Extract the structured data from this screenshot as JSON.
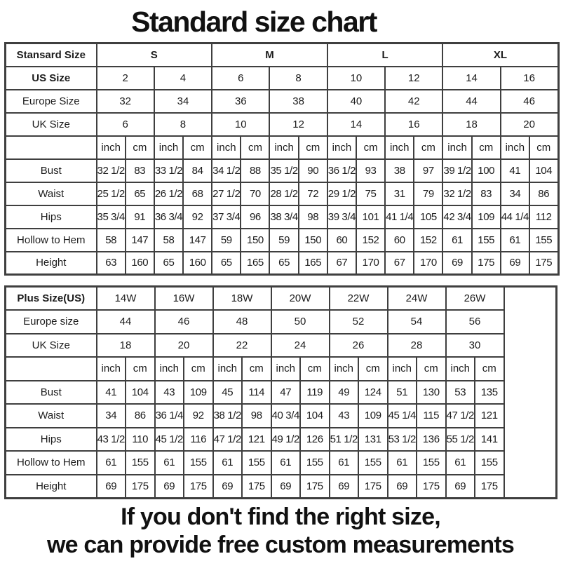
{
  "page_title": "Standard size chart",
  "footer": {
    "line1": "If you don't find the right size,",
    "line2": "we can provide free custom measurements"
  },
  "colors": {
    "background": "#ffffff",
    "border": "#3f3f3f",
    "text": "#1c1c1c"
  },
  "chart_data": [
    {
      "type": "table",
      "name": "standard-size-chart",
      "corner_label": "Stansard Size",
      "groups": [
        "S",
        "M",
        "L",
        "XL"
      ],
      "groups_bold": true,
      "size_rows": [
        {
          "label": "US Size",
          "bold": true,
          "values": [
            "2",
            "4",
            "6",
            "8",
            "10",
            "12",
            "14",
            "16"
          ]
        },
        {
          "label": "Europe Size",
          "bold": false,
          "values": [
            "32",
            "34",
            "36",
            "38",
            "40",
            "42",
            "44",
            "46"
          ]
        },
        {
          "label": "UK Size",
          "bold": false,
          "values": [
            "6",
            "8",
            "10",
            "12",
            "14",
            "16",
            "18",
            "20"
          ]
        }
      ],
      "units": [
        "inch",
        "cm"
      ],
      "measure_rows": [
        {
          "label": "Bust",
          "values": [
            "32 1/2",
            "83",
            "33 1/2",
            "84",
            "34 1/2",
            "88",
            "35 1/2",
            "90",
            "36 1/2",
            "93",
            "38",
            "97",
            "39 1/2",
            "100",
            "41",
            "104"
          ]
        },
        {
          "label": "Waist",
          "values": [
            "25 1/2",
            "65",
            "26 1/2",
            "68",
            "27 1/2",
            "70",
            "28 1/2",
            "72",
            "29 1/2",
            "75",
            "31",
            "79",
            "32 1/2",
            "83",
            "34",
            "86"
          ]
        },
        {
          "label": "Hips",
          "values": [
            "35 3/4",
            "91",
            "36 3/4",
            "92",
            "37 3/4",
            "96",
            "38 3/4",
            "98",
            "39 3/4",
            "101",
            "41 1/4",
            "105",
            "42 3/4",
            "109",
            "44 1/4",
            "112"
          ]
        },
        {
          "label": "Hollow to Hem",
          "values": [
            "58",
            "147",
            "58",
            "147",
            "59",
            "150",
            "59",
            "150",
            "60",
            "152",
            "60",
            "152",
            "61",
            "155",
            "61",
            "155"
          ]
        },
        {
          "label": "Height",
          "values": [
            "63",
            "160",
            "65",
            "160",
            "65",
            "165",
            "65",
            "165",
            "67",
            "170",
            "67",
            "170",
            "69",
            "175",
            "69",
            "175"
          ]
        }
      ],
      "trailing_empty_col": false
    },
    {
      "type": "table",
      "name": "plus-size-chart",
      "corner_label": "Plus Size(US)",
      "groups": [
        "14W",
        "16W",
        "18W",
        "20W",
        "22W",
        "24W",
        "26W"
      ],
      "groups_bold": false,
      "size_rows": [
        {
          "label": "Europe size",
          "bold": false,
          "values": [
            "44",
            "46",
            "48",
            "50",
            "52",
            "54",
            "56"
          ]
        },
        {
          "label": "UK Size",
          "bold": false,
          "values": [
            "18",
            "20",
            "22",
            "24",
            "26",
            "28",
            "30"
          ]
        }
      ],
      "units": [
        "inch",
        "cm"
      ],
      "measure_rows": [
        {
          "label": "Bust",
          "values": [
            "41",
            "104",
            "43",
            "109",
            "45",
            "114",
            "47",
            "119",
            "49",
            "124",
            "51",
            "130",
            "53",
            "135"
          ]
        },
        {
          "label": "Waist",
          "values": [
            "34",
            "86",
            "36 1/4",
            "92",
            "38 1/2",
            "98",
            "40 3/4",
            "104",
            "43",
            "109",
            "45 1/4",
            "115",
            "47 1/2",
            "121"
          ]
        },
        {
          "label": "Hips",
          "values": [
            "43 1/2",
            "110",
            "45 1/2",
            "116",
            "47 1/2",
            "121",
            "49 1/2",
            "126",
            "51 1/2",
            "131",
            "53 1/2",
            "136",
            "55 1/2",
            "141"
          ]
        },
        {
          "label": "Hollow to Hem",
          "values": [
            "61",
            "155",
            "61",
            "155",
            "61",
            "155",
            "61",
            "155",
            "61",
            "155",
            "61",
            "155",
            "61",
            "155"
          ]
        },
        {
          "label": "Height",
          "values": [
            "69",
            "175",
            "69",
            "175",
            "69",
            "175",
            "69",
            "175",
            "69",
            "175",
            "69",
            "175",
            "69",
            "175"
          ]
        }
      ],
      "trailing_empty_col": true
    }
  ]
}
